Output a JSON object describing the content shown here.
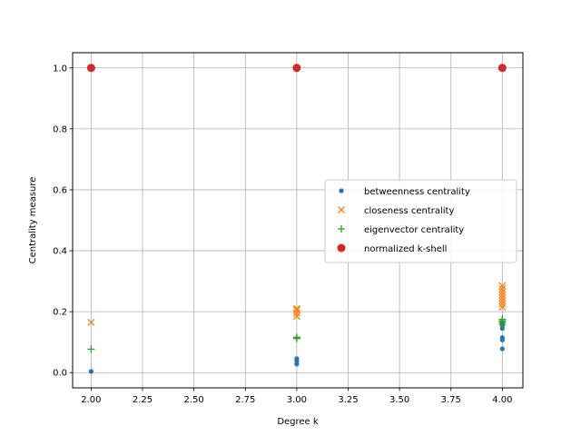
{
  "chart_data": {
    "type": "scatter",
    "xlabel": "Degree k",
    "ylabel": "Centrality measure",
    "xlim": [
      1.91,
      4.1
    ],
    "ylim": [
      -0.05,
      1.05
    ],
    "xticks": [
      "2.00",
      "2.25",
      "2.50",
      "2.75",
      "3.00",
      "3.25",
      "3.50",
      "3.75",
      "4.00"
    ],
    "xtick_values": [
      2.0,
      2.25,
      2.5,
      2.75,
      3.0,
      3.25,
      3.5,
      3.75,
      4.0
    ],
    "yticks": [
      "0.0",
      "0.2",
      "0.4",
      "0.6",
      "0.8",
      "1.0"
    ],
    "ytick_values": [
      0.0,
      0.2,
      0.4,
      0.6,
      0.8,
      1.0
    ],
    "grid": true,
    "legend_position": "center-right",
    "series": [
      {
        "name": "betweenness centrality",
        "marker": "dot",
        "color": "#1f77b4",
        "points": [
          [
            2,
            0.004
          ],
          [
            3,
            0.028
          ],
          [
            3,
            0.038
          ],
          [
            3,
            0.046
          ],
          [
            4,
            0.078
          ],
          [
            4,
            0.107
          ],
          [
            4,
            0.115
          ],
          [
            4,
            0.145
          ],
          [
            4,
            0.155
          ],
          [
            4,
            0.16
          ],
          [
            4,
            0.165
          ]
        ]
      },
      {
        "name": "closeness centrality",
        "marker": "x",
        "color": "#ff7f0e",
        "points": [
          [
            2,
            0.165
          ],
          [
            3,
            0.185
          ],
          [
            3,
            0.195
          ],
          [
            3,
            0.205
          ],
          [
            3,
            0.21
          ],
          [
            4,
            0.215
          ],
          [
            4,
            0.225
          ],
          [
            4,
            0.235
          ],
          [
            4,
            0.245
          ],
          [
            4,
            0.255
          ],
          [
            4,
            0.265
          ],
          [
            4,
            0.275
          ],
          [
            4,
            0.285
          ]
        ]
      },
      {
        "name": "eigenvector centrality",
        "marker": "plus",
        "color": "#2ca02c",
        "points": [
          [
            2,
            0.077
          ],
          [
            3,
            0.112
          ],
          [
            3,
            0.116
          ],
          [
            4,
            0.158
          ],
          [
            4,
            0.165
          ],
          [
            4,
            0.17
          ],
          [
            4,
            0.175
          ]
        ]
      },
      {
        "name": "normalized k-shell",
        "marker": "circle",
        "color": "#d62728",
        "points": [
          [
            2,
            1.0
          ],
          [
            3,
            1.0
          ],
          [
            4,
            1.0
          ]
        ]
      }
    ]
  }
}
